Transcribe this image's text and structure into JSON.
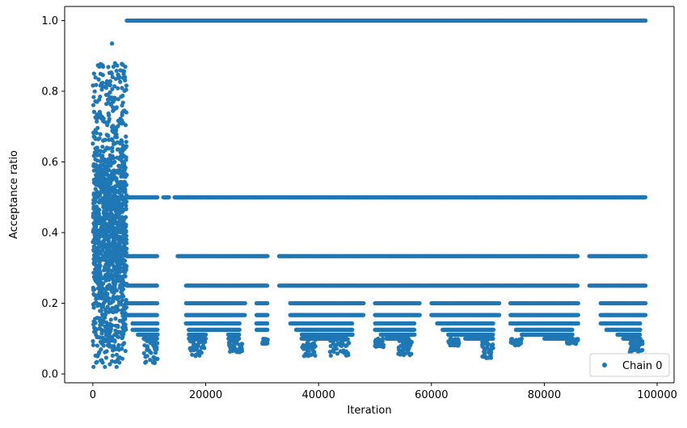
{
  "chart_data": {
    "type": "scatter",
    "title": "",
    "xlabel": "Iteration",
    "ylabel": "Acceptance ratio",
    "xlim": [
      -5000,
      103000
    ],
    "ylim": [
      -0.025,
      1.04
    ],
    "x_ticks": [
      0,
      20000,
      40000,
      60000,
      80000,
      100000
    ],
    "x_tick_labels": [
      "0",
      "20000",
      "40000",
      "60000",
      "80000",
      "100000"
    ],
    "y_ticks": [
      0.0,
      0.2,
      0.4,
      0.6,
      0.8,
      1.0
    ],
    "y_tick_labels": [
      "0.0",
      "0.2",
      "0.4",
      "0.6",
      "0.8",
      "1.0"
    ],
    "grid": false,
    "legend_position": "lower-right",
    "series": [
      {
        "name": "Chain 0",
        "color": "#1f77b4",
        "marker": "circle",
        "description_of_points": "Burn-in cloud 0-6000 with values 0.02-0.94; plateaus at 1.0 (6000-98000), 0.5, 0.333, 0.25, 0.2, 0.167, 0.143, 0.125, 0.111, 0.1 with scattered lower tails",
        "bands": [
          {
            "y": 1.0,
            "x_ranges": [
              [
                6000,
                98000
              ]
            ]
          },
          {
            "y": 0.5,
            "x_ranges": [
              [
                6000,
                11500
              ],
              [
                12500,
                13500
              ],
              [
                14500,
                98000
              ]
            ]
          },
          {
            "y": 0.3333,
            "x_ranges": [
              [
                6000,
                11500
              ],
              [
                15000,
                31000
              ],
              [
                33000,
                86000
              ],
              [
                88000,
                98000
              ]
            ]
          },
          {
            "y": 0.25,
            "x_ranges": [
              [
                6000,
                11500
              ],
              [
                16500,
                31000
              ],
              [
                33000,
                86000
              ],
              [
                88000,
                98000
              ]
            ]
          },
          {
            "y": 0.2,
            "x_ranges": [
              [
                6000,
                11500
              ],
              [
                16500,
                27000
              ],
              [
                29000,
                31000
              ],
              [
                35000,
                48000
              ],
              [
                50000,
                58000
              ],
              [
                60000,
                72000
              ],
              [
                74000,
                86000
              ],
              [
                90000,
                98000
              ]
            ]
          },
          {
            "y": 0.1667,
            "x_ranges": [
              [
                6000,
                11500
              ],
              [
                16500,
                27000
              ],
              [
                29000,
                31000
              ],
              [
                35000,
                48000
              ],
              [
                50000,
                58000
              ],
              [
                60000,
                72000
              ],
              [
                74000,
                86000
              ],
              [
                90000,
                98000
              ]
            ]
          },
          {
            "y": 0.1429,
            "x_ranges": [
              [
                7000,
                11500
              ],
              [
                16500,
                26000
              ],
              [
                29000,
                31000
              ],
              [
                35000,
                46000
              ],
              [
                50000,
                57000
              ],
              [
                61000,
                71000
              ],
              [
                74000,
                86000
              ],
              [
                90000,
                97000
              ]
            ]
          },
          {
            "y": 0.125,
            "x_ranges": [
              [
                7000,
                11500
              ],
              [
                17000,
                26000
              ],
              [
                29000,
                31000
              ],
              [
                36000,
                46000
              ],
              [
                50000,
                57000
              ],
              [
                62000,
                71000
              ],
              [
                75000,
                85000
              ],
              [
                91000,
                97000
              ]
            ]
          },
          {
            "y": 0.1111,
            "x_ranges": [
              [
                8000,
                11500
              ],
              [
                17000,
                20000
              ],
              [
                24000,
                26000
              ],
              [
                37000,
                46000
              ],
              [
                51000,
                57000
              ],
              [
                63000,
                71000
              ],
              [
                76000,
                85000
              ],
              [
                93000,
                97000
              ]
            ]
          },
          {
            "y": 0.1,
            "x_ranges": [
              [
                9000,
                11500
              ],
              [
                17000,
                20000
              ],
              [
                24000,
                26000
              ],
              [
                37000,
                45000
              ],
              [
                52000,
                56000
              ],
              [
                66000,
                71000
              ],
              [
                80000,
                85000
              ],
              [
                94000,
                97000
              ]
            ]
          }
        ],
        "burn_in": {
          "x_range": [
            0,
            6000
          ],
          "y_range": [
            0.02,
            0.94
          ]
        },
        "low_tails": [
          {
            "x_range": [
              9000,
              11500
            ],
            "y_min": 0.03
          },
          {
            "x_range": [
              17000,
              20000
            ],
            "y_min": 0.05
          },
          {
            "x_range": [
              24000,
              26500
            ],
            "y_min": 0.06
          },
          {
            "x_range": [
              30000,
              31000
            ],
            "y_min": 0.085
          },
          {
            "x_range": [
              37000,
              39500
            ],
            "y_min": 0.05
          },
          {
            "x_range": [
              42000,
              45500
            ],
            "y_min": 0.05
          },
          {
            "x_range": [
              50000,
              51500
            ],
            "y_min": 0.075
          },
          {
            "x_range": [
              54000,
              56500
            ],
            "y_min": 0.05
          },
          {
            "x_range": [
              63000,
              65000
            ],
            "y_min": 0.08
          },
          {
            "x_range": [
              69000,
              71000
            ],
            "y_min": 0.045
          },
          {
            "x_range": [
              74000,
              76000
            ],
            "y_min": 0.08
          },
          {
            "x_range": [
              84000,
              86000
            ],
            "y_min": 0.085
          },
          {
            "x_range": [
              95000,
              97500
            ],
            "y_min": 0.06
          }
        ]
      }
    ]
  }
}
